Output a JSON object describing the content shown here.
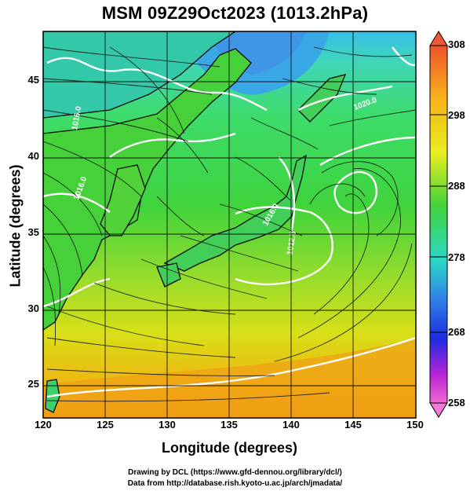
{
  "title": "MSM 09Z29Oct2023 (1013.2hPa)",
  "axes": {
    "xlabel": "Longitude (degrees)",
    "ylabel": "Latitude  (degrees)",
    "x_ticks": [
      "120",
      "125",
      "130",
      "135",
      "140",
      "145",
      "150"
    ],
    "y_ticks": [
      "25",
      "30",
      "35",
      "40",
      "45"
    ]
  },
  "colorbar": {
    "ticks": [
      "308",
      "298",
      "288",
      "278",
      "268",
      "258"
    ]
  },
  "contour_labels": [
    "1016.0",
    "1012.0",
    "1016.0",
    "1016.0",
    "1020.0"
  ],
  "credits": {
    "line1": "Drawing by DCL (https://www.gfd-dennou.org/library/dcl/)",
    "line2": "Data from http://database.rish.kyoto-u.ac.jp/arch/jmadata/"
  },
  "map": {
    "lon_range": [
      120,
      150
    ],
    "lat_range": [
      22.4,
      47.6
    ],
    "grid": true,
    "cyclone_center": {
      "lon": 144.6,
      "lat": 37.3
    }
  }
}
